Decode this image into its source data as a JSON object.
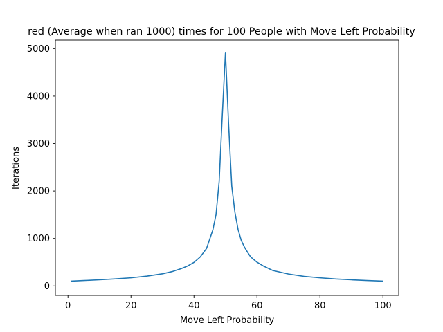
{
  "chart_data": {
    "type": "line",
    "title": "red (Average when ran 1000) times for 100 People with Move Left Probability",
    "xlabel": "Move Left Probability",
    "ylabel": "Iterations",
    "xlim": [
      -4,
      105
    ],
    "ylim": [
      -200,
      5180
    ],
    "xticks": [
      0,
      20,
      40,
      60,
      80,
      100
    ],
    "yticks": [
      0,
      1000,
      2000,
      3000,
      4000,
      5000
    ],
    "grid": false,
    "line_color": "#1f77b4",
    "series": [
      {
        "x": [
          1,
          5,
          10,
          15,
          20,
          25,
          30,
          33,
          36,
          38,
          40,
          42,
          44,
          46,
          47,
          48,
          49,
          50,
          51,
          52,
          53,
          54,
          55,
          56,
          57,
          58,
          60,
          62,
          65,
          70,
          75,
          80,
          85,
          90,
          95,
          100
        ],
        "values": [
          100,
          112,
          128,
          147,
          170,
          205,
          255,
          300,
          365,
          420,
          495,
          610,
          790,
          1180,
          1500,
          2200,
          3600,
          4920,
          3400,
          2100,
          1550,
          1190,
          960,
          820,
          710,
          610,
          500,
          420,
          325,
          250,
          200,
          170,
          145,
          128,
          112,
          100
        ]
      }
    ]
  }
}
